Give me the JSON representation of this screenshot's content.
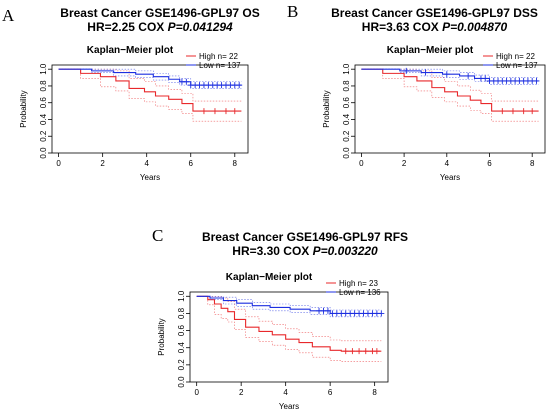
{
  "panels": [
    {
      "letter": "A",
      "title_line1": "Breast Cancer GSE1496-GPL97  OS",
      "hr_text": "HR=2.25   COX ",
      "p_text": "P=0.041294",
      "chart_data": {
        "type": "line",
        "title": "Kaplan−Meier plot",
        "xlabel": "Years",
        "ylabel": "Probability",
        "xlim": [
          -0.3,
          8.6
        ],
        "ylim": [
          0,
          1.05
        ],
        "xticks": [
          0,
          2,
          4,
          6,
          8
        ],
        "yticks": [
          0.0,
          0.2,
          0.4,
          0.6,
          0.8,
          1.0
        ],
        "grid": false,
        "legend_position": "top-right",
        "legend": [
          "High  n= 22",
          "Low   n= 137"
        ],
        "series": [
          {
            "name": "High",
            "color": "#e8282b",
            "x": [
              0,
              1.0,
              1.9,
              2.6,
              3.2,
              3.9,
              4.4,
              5.0,
              5.6,
              6.1,
              8.3
            ],
            "y": [
              1.0,
              0.95,
              0.91,
              0.86,
              0.77,
              0.73,
              0.68,
              0.64,
              0.59,
              0.5,
              0.5
            ],
            "censor_x": [
              6.6,
              7.1,
              7.6,
              8.0
            ]
          },
          {
            "name": "Low",
            "color": "#1c2fe0",
            "x": [
              0,
              1.5,
              2.5,
              3.5,
              4.3,
              5.0,
              5.5,
              6.0,
              8.3
            ],
            "y": [
              1.0,
              0.98,
              0.96,
              0.94,
              0.91,
              0.88,
              0.85,
              0.81,
              0.81
            ],
            "censor_x": [
              5.6,
              5.8,
              6.0,
              6.2,
              6.4,
              6.6,
              6.8,
              7.0,
              7.2,
              7.4,
              7.6,
              7.8,
              8.0,
              8.2
            ]
          }
        ]
      }
    },
    {
      "letter": "B",
      "title_line1": "Breast Cancer GSE1496-GPL97  DSS",
      "hr_text": "HR=3.63   COX ",
      "p_text": "P=0.004870",
      "chart_data": {
        "type": "line",
        "title": "Kaplan−Meier plot",
        "xlabel": "Years",
        "ylabel": "Probability",
        "xlim": [
          -0.3,
          8.6
        ],
        "ylim": [
          0,
          1.05
        ],
        "xticks": [
          0,
          2,
          4,
          6,
          8
        ],
        "yticks": [
          0.0,
          0.2,
          0.4,
          0.6,
          0.8,
          1.0
        ],
        "grid": false,
        "legend_position": "top-right",
        "legend": [
          "High  n= 22",
          "Low   n= 137"
        ],
        "series": [
          {
            "name": "High",
            "color": "#e8282b",
            "x": [
              0,
              1.0,
              2.0,
              2.6,
              3.3,
              3.9,
              4.5,
              5.1,
              5.6,
              6.1,
              8.3
            ],
            "y": [
              1.0,
              0.95,
              0.91,
              0.86,
              0.78,
              0.73,
              0.68,
              0.63,
              0.59,
              0.5,
              0.5
            ],
            "censor_x": [
              6.6,
              7.1,
              7.6,
              8.0
            ]
          },
          {
            "name": "Low",
            "color": "#1c2fe0",
            "x": [
              0,
              1.8,
              2.8,
              3.8,
              4.6,
              5.3,
              6.0,
              8.3
            ],
            "y": [
              1.0,
              0.98,
              0.96,
              0.94,
              0.92,
              0.89,
              0.86,
              0.86
            ],
            "censor_x": [
              2.1,
              3.0,
              4.0,
              5.0,
              5.6,
              5.8,
              6.0,
              6.2,
              6.4,
              6.6,
              6.8,
              7.0,
              7.2,
              7.4,
              7.6,
              7.8,
              8.0,
              8.2
            ]
          }
        ]
      }
    },
    {
      "letter": "C",
      "title_line1": "Breast Cancer GSE1496-GPL97  RFS",
      "hr_text": "HR=3.30   COX ",
      "p_text": "P=0.003220",
      "chart_data": {
        "type": "line",
        "title": "Kaplan−Meier plot",
        "xlabel": "Years",
        "ylabel": "Probability",
        "xlim": [
          -0.3,
          8.6
        ],
        "ylim": [
          0,
          1.05
        ],
        "xticks": [
          0,
          2,
          4,
          6,
          8
        ],
        "yticks": [
          0.0,
          0.2,
          0.4,
          0.6,
          0.8,
          1.0
        ],
        "grid": false,
        "legend_position": "top-right",
        "legend": [
          "High  n= 23",
          "Low   n= 136"
        ],
        "series": [
          {
            "name": "High",
            "color": "#e8282b",
            "x": [
              0,
              0.5,
              0.8,
              1.1,
              1.4,
              1.7,
              2.2,
              2.8,
              3.4,
              4.0,
              4.6,
              5.2,
              6.0,
              6.5,
              8.3
            ],
            "y": [
              1.0,
              0.96,
              0.91,
              0.86,
              0.82,
              0.73,
              0.64,
              0.59,
              0.55,
              0.5,
              0.46,
              0.41,
              0.37,
              0.36,
              0.36
            ],
            "censor_x": [
              6.7,
              7.0,
              7.3,
              7.6,
              7.9,
              8.1
            ]
          },
          {
            "name": "Low",
            "color": "#1c2fe0",
            "x": [
              0,
              0.6,
              1.2,
              1.8,
              2.5,
              3.3,
              4.2,
              5.1,
              6.0,
              8.3
            ],
            "y": [
              1.0,
              0.98,
              0.95,
              0.92,
              0.89,
              0.87,
              0.85,
              0.83,
              0.8,
              0.8
            ],
            "censor_x": [
              5.5,
              5.7,
              5.9,
              6.1,
              6.3,
              6.5,
              6.7,
              6.9,
              7.1,
              7.3,
              7.5,
              7.7,
              7.9,
              8.1,
              8.3
            ]
          }
        ]
      }
    }
  ]
}
